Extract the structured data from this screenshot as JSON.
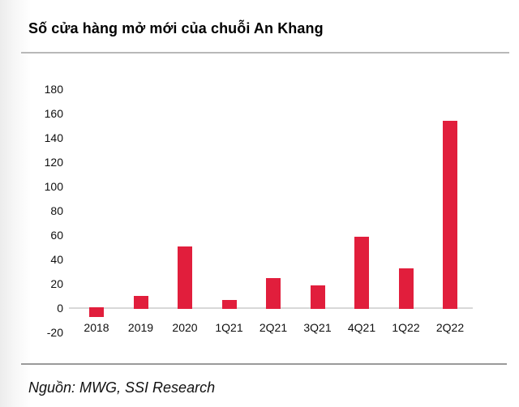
{
  "header": {
    "title": "Số cửa hàng mở mới của chuỗi An Khang"
  },
  "footer": {
    "source": "Nguồn: MWG, SSI Research"
  },
  "chart_data": {
    "type": "bar",
    "title": "Số cửa hàng mở mới của chuỗi An Khang",
    "categories": [
      "2018",
      "2019",
      "2020",
      "1Q21",
      "2Q21",
      "3Q21",
      "4Q21",
      "1Q22",
      "2Q22"
    ],
    "values": [
      -7,
      10,
      51,
      7,
      25,
      19,
      59,
      33,
      154
    ],
    "series": [
      {
        "name": "Số cửa hàng mở mới",
        "values": [
          -7,
          10,
          51,
          7,
          25,
          19,
          59,
          33,
          154
        ]
      }
    ],
    "xlabel": "",
    "ylabel": "",
    "ylim": [
      -20,
      180
    ],
    "ytick_interval": 20,
    "yticks": [
      180,
      160,
      140,
      120,
      100,
      80,
      60,
      40,
      20,
      0,
      -20
    ],
    "grid": false,
    "legend_position": "none",
    "bar_color": "#e11e3c",
    "axis_line_color": "#d8d8d8",
    "source_note": "Nguồn: MWG, SSI Research"
  },
  "colors": {
    "bar_red": "#e11e3c",
    "axis_line": "#d8d8d8",
    "title_divider": "#b8b8b8",
    "footer_divider": "#9a9a9a",
    "text": "#000000"
  }
}
